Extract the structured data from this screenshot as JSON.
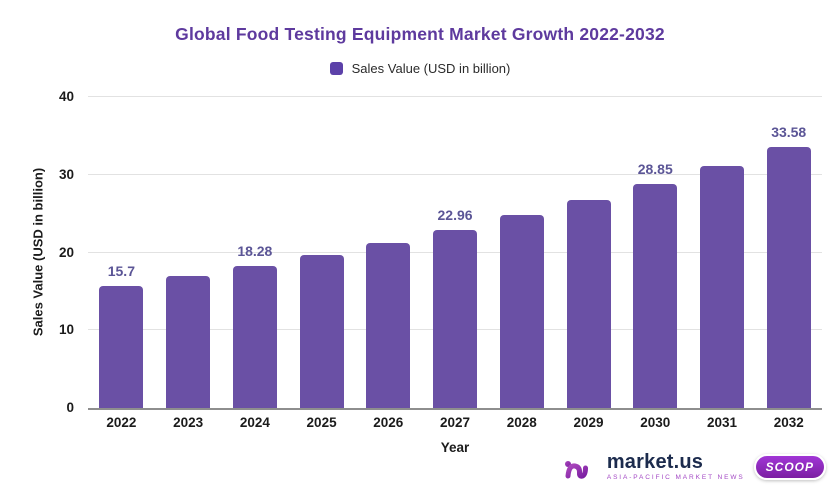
{
  "page": {
    "background": "#ffffff"
  },
  "chart": {
    "title": "Global Food Testing Equipment Market Growth 2022-2032",
    "title_color": "#5E3A9E",
    "legend": {
      "label": "Sales Value (USD in billion)",
      "marker_color": "#5C41A9"
    },
    "xlabel": "Year",
    "ylabel": "Sales Value (USD in billion)"
  },
  "chart_data": {
    "type": "bar",
    "title": "Global Food Testing Equipment Market Growth 2022-2032",
    "xlabel": "Year",
    "ylabel": "Sales Value (USD in billion)",
    "legend_entries": [
      "Sales Value (USD in billion)"
    ],
    "legend_position": "top",
    "grid": true,
    "categories": [
      "2022",
      "2023",
      "2024",
      "2025",
      "2026",
      "2027",
      "2028",
      "2029",
      "2030",
      "2031",
      "2032"
    ],
    "values": [
      15.7,
      16.94,
      18.28,
      19.72,
      21.28,
      22.96,
      24.77,
      26.73,
      28.85,
      31.12,
      33.58
    ],
    "data_labels": [
      "15.7",
      "",
      "18.28",
      "",
      "",
      "22.96",
      "",
      "",
      "28.85",
      "",
      "33.58"
    ],
    "ylim": [
      0,
      40
    ],
    "yticks": [
      0,
      10,
      20,
      30,
      40
    ],
    "bar_color": "#6A50A5",
    "data_label_color": "#5B5596",
    "gridline_color": "#E2E2E2",
    "axis_line_color": "#8E8E8E"
  },
  "branding": {
    "wordmark": "market.us",
    "tagline": "ASIA-PACIFIC MARKET NEWS",
    "badge": "SCOOP",
    "brand_purple": "#8E24AA",
    "brand_navy": "#1C2B4D"
  }
}
